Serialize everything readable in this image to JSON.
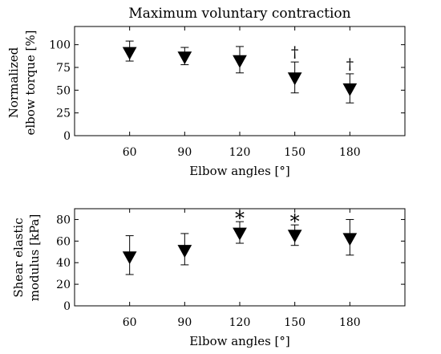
{
  "chart_data": [
    {
      "type": "scatter",
      "title": "Maximum voluntary contraction",
      "xlabel": "Elbow angles [°]",
      "ylabel": [
        "Normalized",
        "elbow torque [%]"
      ],
      "x": [
        60,
        90,
        120,
        150,
        180
      ],
      "y": [
        91,
        86,
        82,
        63,
        51
      ],
      "error_low": [
        82,
        78,
        69,
        47,
        36
      ],
      "error_high": [
        104,
        97,
        98,
        81,
        68
      ],
      "annotations": [
        "",
        "",
        "",
        "†",
        "†"
      ],
      "xlim": [
        30,
        210
      ],
      "ylim": [
        0,
        120
      ],
      "xticks": [
        60,
        90,
        120,
        150,
        180
      ],
      "yticks": [
        0,
        25,
        50,
        75,
        100
      ],
      "grid": false,
      "marker": "filled-down-triangle"
    },
    {
      "type": "scatter",
      "title": "",
      "xlabel": "Elbow angles [°]",
      "ylabel": [
        "Shear elastic",
        "modulus [kPa]"
      ],
      "x": [
        60,
        90,
        120,
        150,
        180
      ],
      "y": [
        45,
        51,
        67,
        65,
        62
      ],
      "error_low": [
        29,
        38,
        58,
        56,
        47
      ],
      "error_high": [
        65,
        67,
        78,
        75,
        80
      ],
      "annotations": [
        "",
        "",
        "*",
        "*",
        ""
      ],
      "xlim": [
        30,
        210
      ],
      "ylim": [
        0,
        90
      ],
      "xticks": [
        60,
        90,
        120,
        150,
        180
      ],
      "yticks": [
        0,
        20,
        40,
        60,
        80
      ],
      "grid": false,
      "marker": "filled-down-triangle"
    }
  ]
}
